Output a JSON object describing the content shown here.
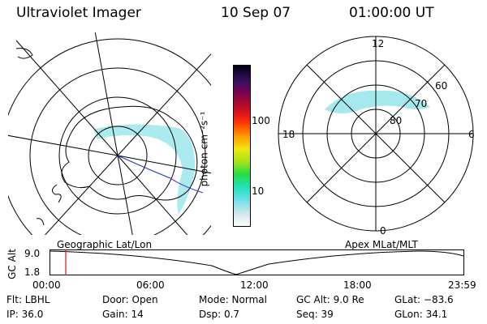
{
  "header": {
    "instrument": "Ultraviolet Imager",
    "date": "10 Sep 07",
    "time": "01:00:00 UT"
  },
  "colorbar": {
    "label": "photon cm⁻²s⁻¹",
    "ticks": [
      "100",
      "10"
    ]
  },
  "geo_map": {
    "caption": "Geographic Lat/Lon"
  },
  "polar_plot": {
    "caption": "Apex MLat/MLT",
    "mlt_labels": [
      "12",
      "18",
      "6",
      "0"
    ],
    "mlat_labels": [
      "60",
      "70",
      "80"
    ]
  },
  "timeline": {
    "ylabel": "GC Alt",
    "yticks": [
      "9.0",
      "1.8"
    ],
    "xticks": [
      "00:00",
      "06:00",
      "12:00",
      "18:00",
      "23:59"
    ],
    "current_marker": "01:00"
  },
  "footer": {
    "filter": "Flt: LBHL",
    "door": "Door: Open",
    "mode": "Mode: Normal",
    "gc_alt": "GC Alt: 9.0 Re",
    "glat": "GLat: −83.6",
    "ip": "IP: 36.0",
    "gain": "Gain: 14",
    "dsp": "Dsp:     0.7",
    "seq": "Seq: 39",
    "glon": "GLon:  34.1"
  },
  "colors": {
    "aurora": "#8fe3ea",
    "marker": "#d01818",
    "track": "#1f2fd0"
  }
}
